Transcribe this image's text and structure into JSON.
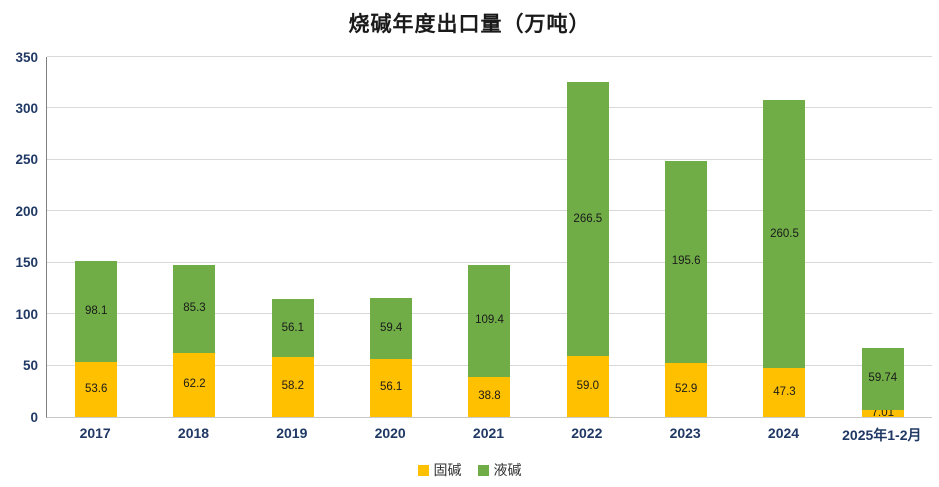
{
  "chart_data": {
    "type": "bar",
    "stacked": true,
    "title": "烧碱年度出口量（万吨）",
    "categories": [
      "2017",
      "2018",
      "2019",
      "2020",
      "2021",
      "2022",
      "2023",
      "2024",
      "2025年1-2月"
    ],
    "series": [
      {
        "name": "固碱",
        "color": "#FFC000",
        "values": [
          53.6,
          62.2,
          58.2,
          56.1,
          38.8,
          59.0,
          52.9,
          47.3,
          7.01
        ],
        "labels": [
          "53.6",
          "62.2",
          "58.2",
          "56.1",
          "38.8",
          "59.0",
          "52.9",
          "47.3",
          "7.01"
        ]
      },
      {
        "name": "液碱",
        "color": "#70AD47",
        "values": [
          98.1,
          85.3,
          56.1,
          59.4,
          109.4,
          266.5,
          195.6,
          260.5,
          59.74
        ],
        "labels": [
          "98.1",
          "85.3",
          "56.1",
          "59.4",
          "109.4",
          "266.5",
          "195.6",
          "260.5",
          "59.74"
        ]
      }
    ],
    "ylim": [
      0,
      350
    ],
    "yticks": [
      0,
      50,
      100,
      150,
      200,
      250,
      300,
      350
    ],
    "grid": true,
    "legend_position": "bottom"
  }
}
